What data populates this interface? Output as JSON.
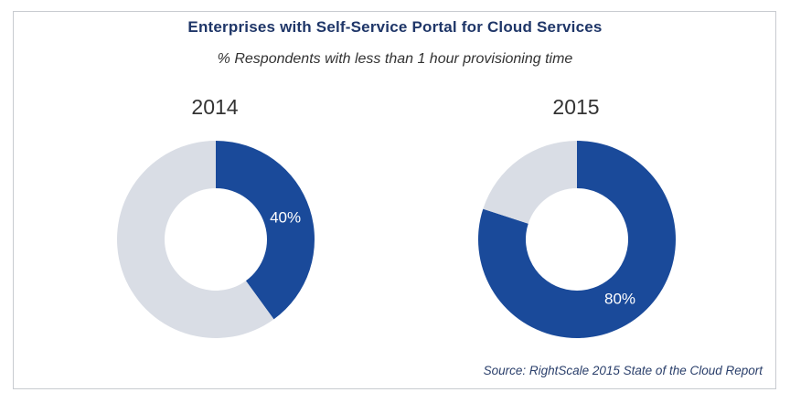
{
  "chart_data": [
    {
      "type": "pie",
      "variant": "donut",
      "title": "2014",
      "slices": [
        {
          "name": "",
          "value": 40,
          "label": "40%",
          "color": "#1a4a9a"
        },
        {
          "name": "",
          "value": 60,
          "label": "",
          "color": "#d9dde5"
        }
      ]
    },
    {
      "type": "pie",
      "variant": "donut",
      "title": "2015",
      "slices": [
        {
          "name": "",
          "value": 80,
          "label": "80%",
          "color": "#1a4a9a"
        },
        {
          "name": "",
          "value": 20,
          "label": "",
          "color": "#d9dde5"
        }
      ]
    }
  ],
  "figure": {
    "title": "Enterprises with Self-Service Portal for Cloud Services",
    "subtitle": "% Respondents with less than 1 hour provisioning time",
    "source": "Source: RightScale 2015 State of the Cloud Report"
  }
}
